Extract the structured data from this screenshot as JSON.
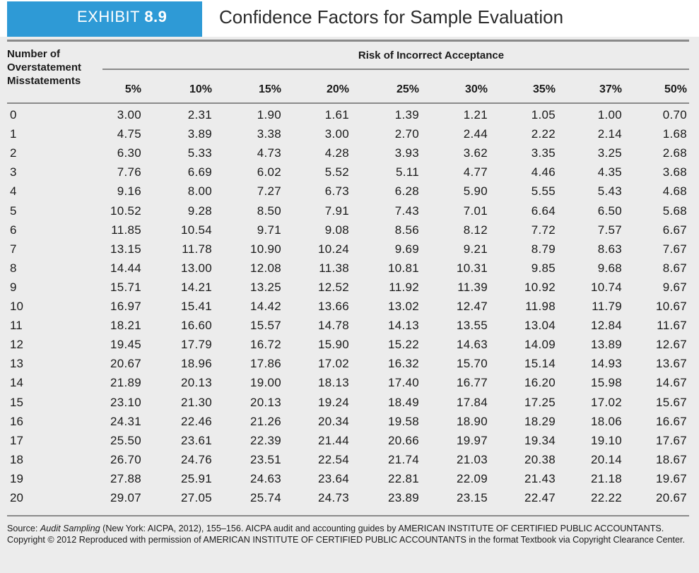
{
  "exhibit": {
    "label": "EXHIBIT",
    "number": "8.9",
    "title": "Confidence Factors for Sample Evaluation"
  },
  "header": {
    "row_label_lines": [
      "Number of",
      "Overstatement",
      "Misstatements"
    ],
    "risk_title": "Risk of Incorrect Acceptance",
    "columns": [
      "5%",
      "10%",
      "15%",
      "20%",
      "25%",
      "30%",
      "35%",
      "37%",
      "50%"
    ]
  },
  "rows": [
    {
      "n": "0",
      "values": [
        "3.00",
        "2.31",
        "1.90",
        "1.61",
        "1.39",
        "1.21",
        "1.05",
        "1.00",
        "0.70"
      ]
    },
    {
      "n": "1",
      "values": [
        "4.75",
        "3.89",
        "3.38",
        "3.00",
        "2.70",
        "2.44",
        "2.22",
        "2.14",
        "1.68"
      ]
    },
    {
      "n": "2",
      "values": [
        "6.30",
        "5.33",
        "4.73",
        "4.28",
        "3.93",
        "3.62",
        "3.35",
        "3.25",
        "2.68"
      ]
    },
    {
      "n": "3",
      "values": [
        "7.76",
        "6.69",
        "6.02",
        "5.52",
        "5.11",
        "4.77",
        "4.46",
        "4.35",
        "3.68"
      ]
    },
    {
      "n": "4",
      "values": [
        "9.16",
        "8.00",
        "7.27",
        "6.73",
        "6.28",
        "5.90",
        "5.55",
        "5.43",
        "4.68"
      ]
    },
    {
      "n": "5",
      "values": [
        "10.52",
        "9.28",
        "8.50",
        "7.91",
        "7.43",
        "7.01",
        "6.64",
        "6.50",
        "5.68"
      ]
    },
    {
      "n": "6",
      "values": [
        "11.85",
        "10.54",
        "9.71",
        "9.08",
        "8.56",
        "8.12",
        "7.72",
        "7.57",
        "6.67"
      ]
    },
    {
      "n": "7",
      "values": [
        "13.15",
        "11.78",
        "10.90",
        "10.24",
        "9.69",
        "9.21",
        "8.79",
        "8.63",
        "7.67"
      ]
    },
    {
      "n": "8",
      "values": [
        "14.44",
        "13.00",
        "12.08",
        "11.38",
        "10.81",
        "10.31",
        "9.85",
        "9.68",
        "8.67"
      ]
    },
    {
      "n": "9",
      "values": [
        "15.71",
        "14.21",
        "13.25",
        "12.52",
        "11.92",
        "11.39",
        "10.92",
        "10.74",
        "9.67"
      ]
    },
    {
      "n": "10",
      "values": [
        "16.97",
        "15.41",
        "14.42",
        "13.66",
        "13.02",
        "12.47",
        "11.98",
        "11.79",
        "10.67"
      ]
    },
    {
      "n": "11",
      "values": [
        "18.21",
        "16.60",
        "15.57",
        "14.78",
        "14.13",
        "13.55",
        "13.04",
        "12.84",
        "11.67"
      ]
    },
    {
      "n": "12",
      "values": [
        "19.45",
        "17.79",
        "16.72",
        "15.90",
        "15.22",
        "14.63",
        "14.09",
        "13.89",
        "12.67"
      ]
    },
    {
      "n": "13",
      "values": [
        "20.67",
        "18.96",
        "17.86",
        "17.02",
        "16.32",
        "15.70",
        "15.14",
        "14.93",
        "13.67"
      ]
    },
    {
      "n": "14",
      "values": [
        "21.89",
        "20.13",
        "19.00",
        "18.13",
        "17.40",
        "16.77",
        "16.20",
        "15.98",
        "14.67"
      ]
    },
    {
      "n": "15",
      "values": [
        "23.10",
        "21.30",
        "20.13",
        "19.24",
        "18.49",
        "17.84",
        "17.25",
        "17.02",
        "15.67"
      ]
    },
    {
      "n": "16",
      "values": [
        "24.31",
        "22.46",
        "21.26",
        "20.34",
        "19.58",
        "18.90",
        "18.29",
        "18.06",
        "16.67"
      ]
    },
    {
      "n": "17",
      "values": [
        "25.50",
        "23.61",
        "22.39",
        "21.44",
        "20.66",
        "19.97",
        "19.34",
        "19.10",
        "17.67"
      ]
    },
    {
      "n": "18",
      "values": [
        "26.70",
        "24.76",
        "23.51",
        "22.54",
        "21.74",
        "21.03",
        "20.38",
        "20.14",
        "18.67"
      ]
    },
    {
      "n": "19",
      "values": [
        "27.88",
        "25.91",
        "24.63",
        "23.64",
        "22.81",
        "22.09",
        "21.43",
        "21.18",
        "19.67"
      ]
    },
    {
      "n": "20",
      "values": [
        "29.07",
        "27.05",
        "25.74",
        "24.73",
        "23.89",
        "23.15",
        "22.47",
        "22.22",
        "20.67"
      ]
    }
  ],
  "source": {
    "prefix": "Source: ",
    "italic": "Audit Sampling",
    "rest": " (New York: AICPA, 2012), 155–156. AICPA audit and accounting guides by AMERICAN INSTITUTE OF CERTIFIED PUBLIC ACCOUNTANTS. Copyright © 2012 Reproduced with permission of AMERICAN INSTITUTE OF CERTIFIED PUBLIC ACCOUNTANTS in the format Textbook via Copyright Clearance Center."
  },
  "colors": {
    "badge": "#2e9ad6",
    "background": "#ececec",
    "rule": "#8a8a8a"
  }
}
